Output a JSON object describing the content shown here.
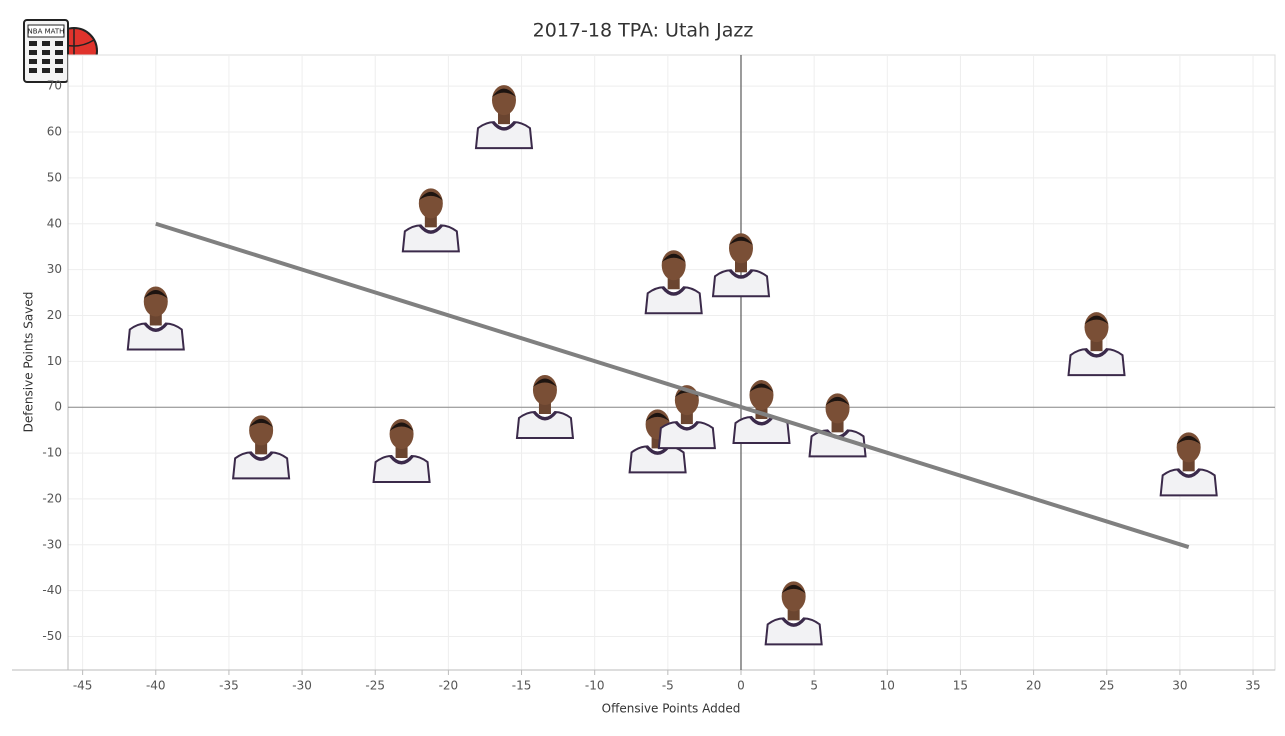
{
  "chart_data": {
    "type": "scatter",
    "title": "2017-18 TPA: Utah Jazz",
    "logo_text": "NBA MATH",
    "x_label": "Offensive Points Added",
    "y_label": "Defensive Points Saved",
    "xlim": [
      -46,
      36.5
    ],
    "ylim": [
      -57.3,
      76.8
    ],
    "xticks": [
      -45,
      -40,
      -35,
      -30,
      -25,
      -20,
      -15,
      -10,
      -5,
      0,
      5,
      10,
      15,
      20,
      25,
      30,
      35
    ],
    "yticks": [
      -50,
      -40,
      -30,
      -20,
      -10,
      0,
      10,
      20,
      30,
      40,
      50,
      60,
      70
    ],
    "grid": true,
    "reference_lines": [
      {
        "axis": "x",
        "value": 0
      },
      {
        "axis": "y",
        "value": 0
      }
    ],
    "series": [
      {
        "color": "#3b2a4a",
        "x": [
          -40,
          -21.2,
          -16.2,
          -4.6,
          0,
          24.3,
          -32.8,
          -23.2,
          -13.4,
          -5.7,
          -3.7,
          1.4,
          6.6,
          30.6,
          3.6
        ],
        "y": [
          20,
          41.4,
          63.9,
          27.9,
          31.6,
          14.4,
          -8.1,
          -8.9,
          0.7,
          -6.8,
          -1.5,
          -0.4,
          -3.3,
          -11.8,
          -44.3
        ]
      }
    ],
    "trend_line": {
      "color": "#808080",
      "x": [
        -40,
        30.6
      ],
      "y": [
        40,
        -30.5
      ]
    }
  }
}
